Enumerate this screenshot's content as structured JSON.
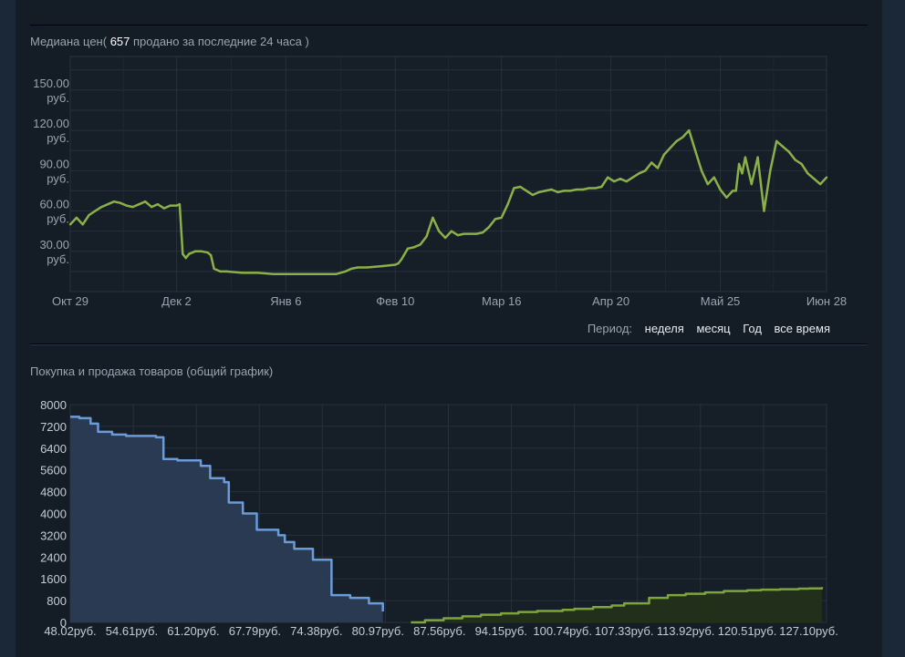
{
  "median_chart": {
    "title_prefix": "Медиана цен(",
    "sold_count": "657",
    "title_suffix": "продано за последние 24 часа )",
    "y_ticks": [
      {
        "value": 150,
        "line1": "150.00",
        "line2": "руб."
      },
      {
        "value": 120,
        "line1": "120.00",
        "line2": "руб."
      },
      {
        "value": 90,
        "line1": "90.00",
        "line2": "руб."
      },
      {
        "value": 60,
        "line1": "60.00",
        "line2": "руб."
      },
      {
        "value": 30,
        "line1": "30.00",
        "line2": "руб."
      }
    ],
    "x_ticks": [
      {
        "label": "Окт 29",
        "day": 0
      },
      {
        "label": "Дек 2",
        "day": 34
      },
      {
        "label": "Янв 6",
        "day": 69
      },
      {
        "label": "Фев 10",
        "day": 104
      },
      {
        "label": "Мар 16",
        "day": 138
      },
      {
        "label": "Апр 20",
        "day": 173
      },
      {
        "label": "Май 25",
        "day": 208
      },
      {
        "label": "Июн 28",
        "day": 242
      }
    ],
    "period": {
      "label": "Период:",
      "options": [
        "неделя",
        "месяц",
        "Год",
        "все время"
      ]
    },
    "colors": {
      "line": "#8bb049",
      "grid": "#27313c"
    }
  },
  "orders_chart": {
    "title": "Покупка и продажа товаров (общий график)",
    "y_ticks": [
      "8000",
      "7200",
      "6400",
      "5600",
      "4800",
      "4000",
      "3200",
      "2400",
      "1600",
      "800",
      "0"
    ],
    "x_ticks": [
      "48.02руб.",
      "54.61руб.",
      "61.20руб.",
      "67.79руб.",
      "74.38руб.",
      "80.97руб.",
      "87.56руб.",
      "94.15руб.",
      "100.74руб.",
      "107.33руб.",
      "113.92руб.",
      "120.51руб.",
      "127.10руб."
    ],
    "colors": {
      "buy": "#6b9bd8",
      "buy_fill": "#2b3d57",
      "sell": "#7da53c",
      "sell_fill": "#233019"
    }
  },
  "chart_data": [
    {
      "type": "line",
      "title": "Медиана цен( 657 продано за последние 24 часа )",
      "xlabel": "",
      "ylabel": "",
      "ylim": [
        0,
        175
      ],
      "x_range": [
        "Окт 29",
        "Июн 28"
      ],
      "grid": true,
      "series": [
        {
          "x": [
            0,
            2,
            4,
            6,
            8,
            10,
            12,
            14,
            16,
            18,
            20,
            22,
            24,
            26,
            28,
            30,
            32,
            34,
            35,
            36,
            37,
            38,
            40,
            42,
            44,
            45,
            46,
            48,
            50,
            55,
            60,
            65,
            70,
            75,
            80,
            85,
            88,
            90,
            92,
            95,
            100,
            104,
            105,
            106,
            108,
            110,
            112,
            114,
            116,
            118,
            120,
            122,
            124,
            126,
            128,
            130,
            132,
            134,
            136,
            138,
            140,
            142,
            144,
            146,
            148,
            150,
            152,
            154,
            156,
            158,
            160,
            162,
            164,
            166,
            168,
            170,
            172,
            174,
            176,
            178,
            180,
            182,
            184,
            186,
            188,
            190,
            192,
            194,
            196,
            198,
            200,
            202,
            204,
            206,
            208,
            210,
            212,
            213,
            214,
            215,
            216,
            218,
            220,
            222,
            224,
            226,
            228,
            230,
            232,
            234,
            236,
            238,
            240,
            242
          ],
          "y": [
            50,
            55,
            50,
            57,
            60,
            63,
            65,
            67,
            66,
            64,
            63,
            65,
            67,
            63,
            65,
            62,
            64,
            64,
            65,
            28,
            25,
            28,
            30,
            30,
            29,
            27,
            17,
            15,
            15,
            14,
            14,
            13,
            13,
            13,
            13,
            13,
            15,
            17,
            18,
            18,
            19,
            20,
            21,
            24,
            32,
            33,
            35,
            41,
            55,
            45,
            40,
            45,
            42,
            43,
            43,
            43,
            44,
            48,
            54,
            55,
            65,
            77,
            78,
            75,
            72,
            74,
            75,
            76,
            74,
            75,
            75,
            76,
            76,
            77,
            77,
            78,
            85,
            82,
            84,
            82,
            85,
            88,
            90,
            96,
            92,
            102,
            107,
            112,
            115,
            120,
            105,
            90,
            80,
            85,
            76,
            70,
            75,
            75,
            95,
            88,
            100,
            80,
            100,
            60,
            90,
            112,
            108,
            104,
            98,
            95,
            88,
            84,
            80,
            85
          ]
        }
      ]
    },
    {
      "type": "area",
      "title": "Покупка и продажа товаров (общий график)",
      "xlabel": "",
      "ylabel": "",
      "ylim": [
        0,
        8000
      ],
      "grid": true,
      "series": [
        {
          "name": "buy",
          "x": [
            48.02,
            49.0,
            50.2,
            51.0,
            52.5,
            54.0,
            57.2,
            58.0,
            59.5,
            62.0,
            63.0,
            64.5,
            65.0,
            66.5,
            68.0,
            70.3,
            71.0,
            72.0,
            74.0,
            76.0,
            78.0,
            80.0,
            81.5
          ],
          "y": [
            7550,
            7500,
            7300,
            7000,
            6900,
            6850,
            6800,
            6000,
            5950,
            5750,
            5300,
            5150,
            4400,
            4000,
            3400,
            3200,
            2950,
            2700,
            2300,
            1000,
            900,
            700,
            400
          ]
        },
        {
          "name": "sell",
          "x": [
            84.5,
            86.0,
            88.0,
            90.0,
            92.0,
            94.15,
            96.0,
            98.0,
            100.74,
            102.0,
            104.0,
            106.0,
            107.33,
            110.0,
            112.0,
            113.92,
            116.0,
            118.0,
            120.51,
            122.0,
            124.0,
            126.0,
            127.1,
            128.5
          ],
          "y": [
            0,
            80,
            150,
            220,
            280,
            330,
            380,
            420,
            460,
            500,
            560,
            620,
            700,
            900,
            1000,
            1050,
            1100,
            1150,
            1180,
            1200,
            1220,
            1240,
            1250,
            1300
          ]
        }
      ]
    }
  ]
}
